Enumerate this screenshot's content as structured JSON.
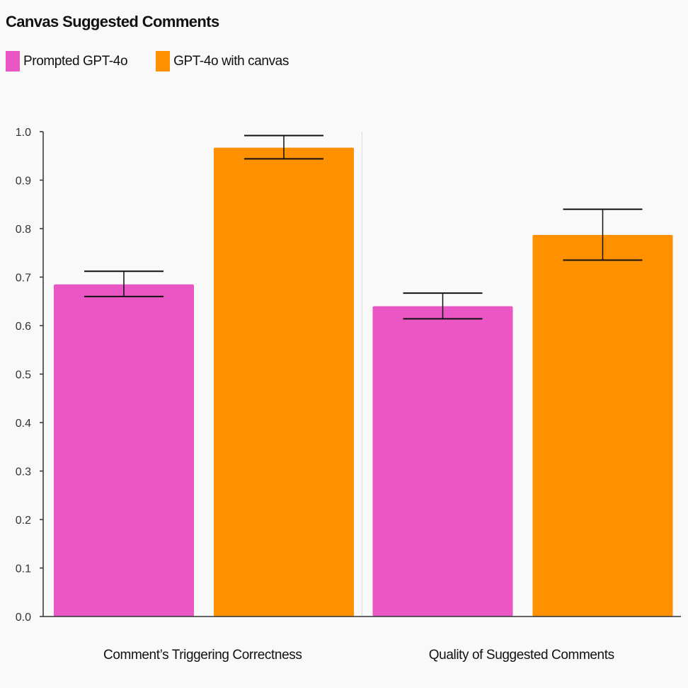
{
  "colors": {
    "prompted": "#ea56c4",
    "canvas": "#ff9100",
    "axis": "#333333",
    "divider": "#dddddd",
    "error": "#111111"
  },
  "chart_data": {
    "type": "bar",
    "title": "Canvas Suggested Comments",
    "xlabel": "",
    "ylabel": "",
    "ylim": [
      0,
      1.0
    ],
    "yticks": [
      "0.0",
      "0.1",
      "0.2",
      "0.3",
      "0.4",
      "0.5",
      "0.6",
      "0.7",
      "0.8",
      "0.9",
      "1.0"
    ],
    "grid": false,
    "legend_position": "top-left",
    "categories": [
      "Comment’s Triggering Correctness",
      "Quality of Suggested Comments"
    ],
    "series": [
      {
        "name": "Prompted GPT-4o",
        "color_key": "prompted",
        "values": [
          0.685,
          0.64
        ],
        "error_low": [
          0.66,
          0.614
        ],
        "error_high": [
          0.712,
          0.667
        ]
      },
      {
        "name": "GPT-4o with canvas",
        "color_key": "canvas",
        "values": [
          0.967,
          0.787
        ],
        "error_low": [
          0.944,
          0.735
        ],
        "error_high": [
          0.992,
          0.84
        ]
      }
    ]
  }
}
